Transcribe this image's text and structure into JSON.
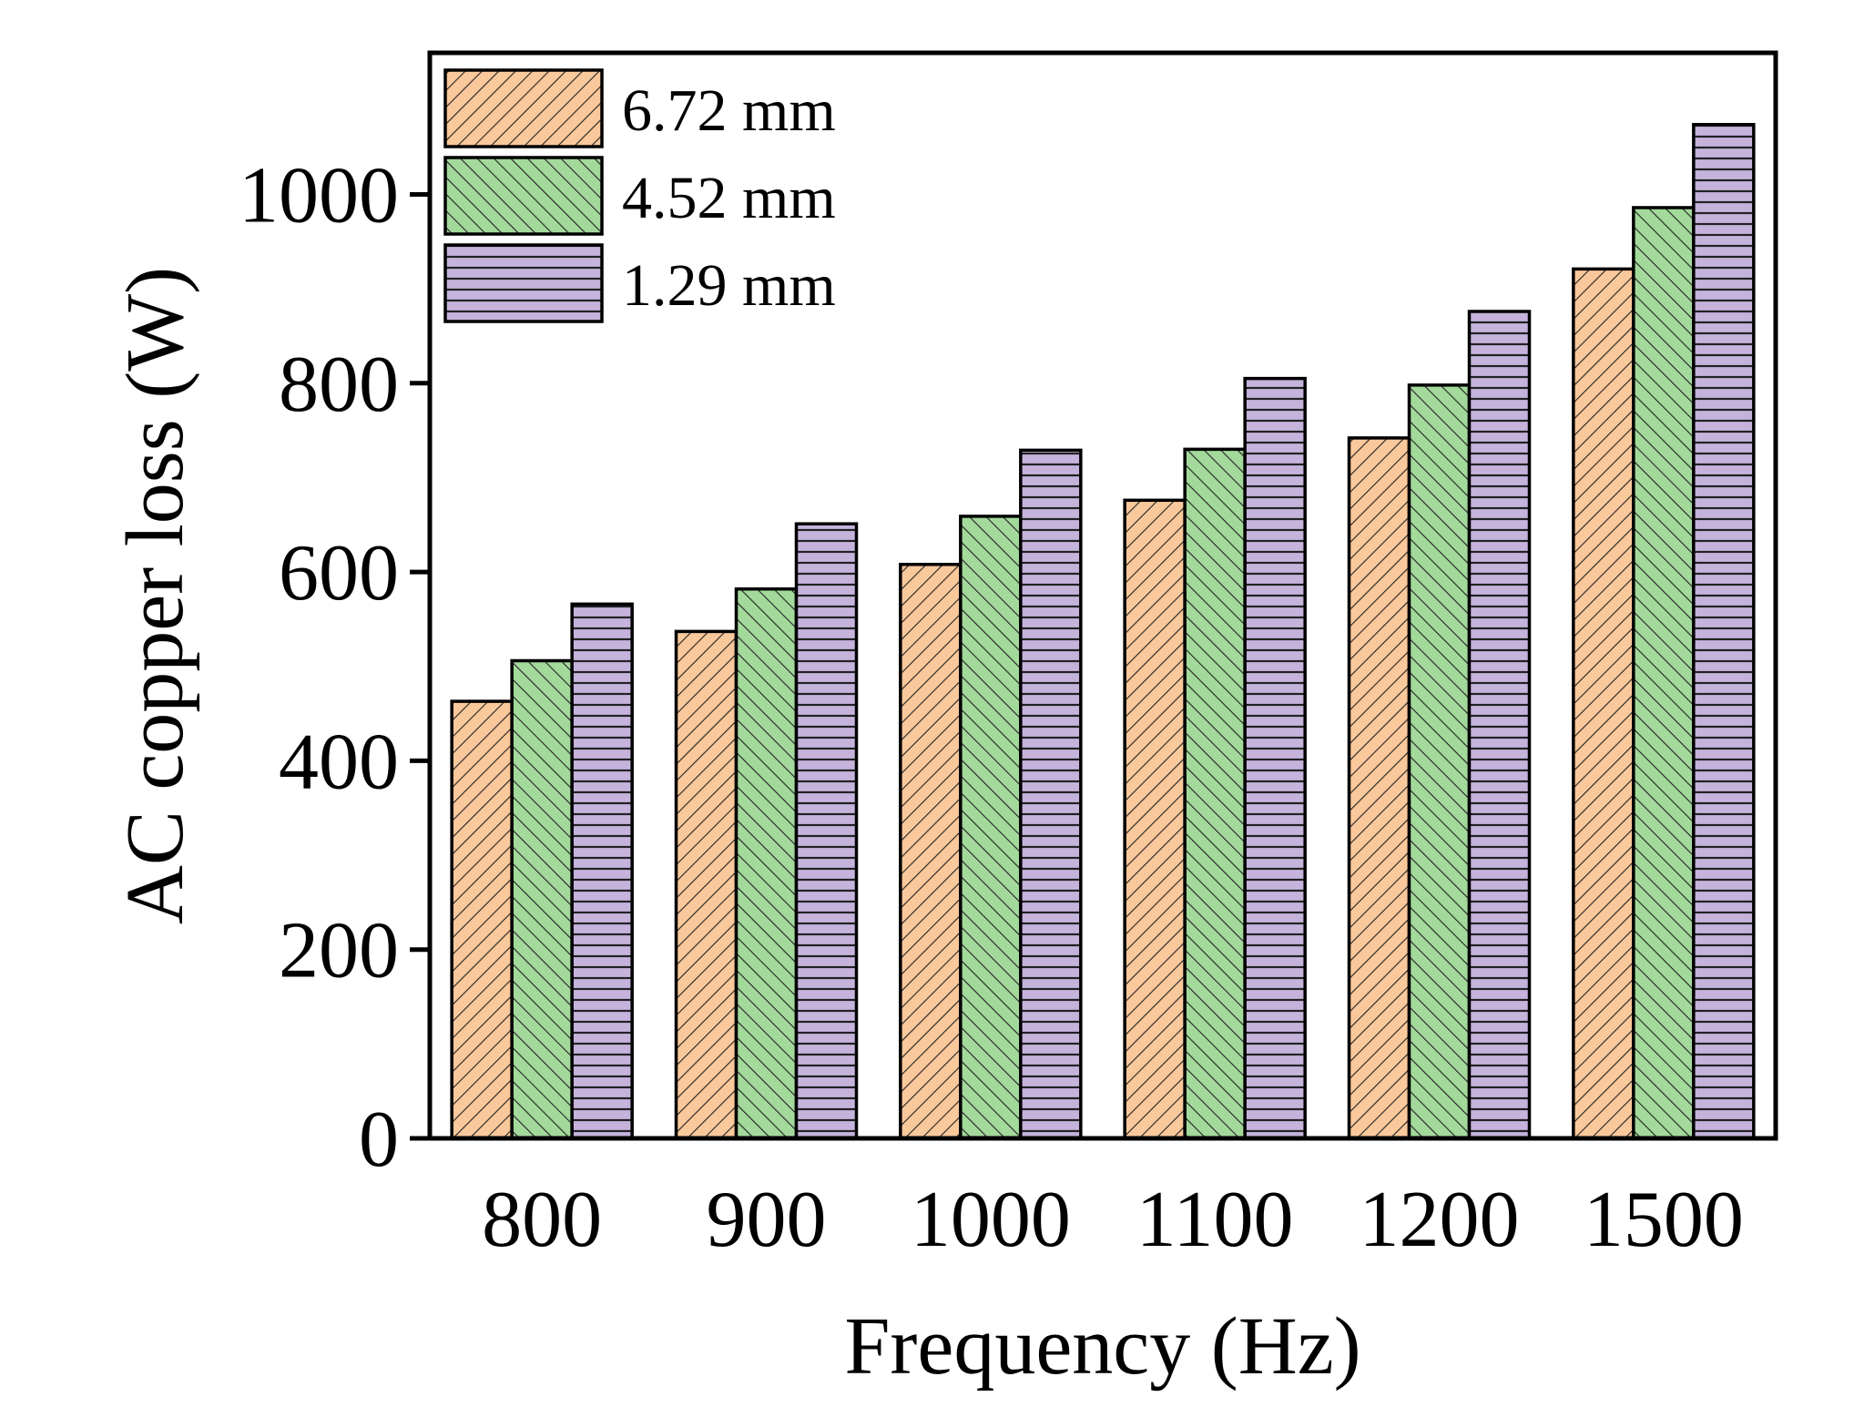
{
  "chart_data": {
    "type": "bar",
    "title": "",
    "xlabel": "Frequency (Hz)",
    "ylabel": "AC copper loss (W)",
    "categories": [
      "800",
      "900",
      "1000",
      "1100",
      "1200",
      "1500"
    ],
    "ylim": [
      0,
      1150
    ],
    "yticks": [
      "0",
      "200",
      "400",
      "600",
      "800",
      "1000"
    ],
    "legend_position": "top-left",
    "grid": false,
    "series": [
      {
        "name": "6.72 mm",
        "color": "#f9c89b",
        "hatch": "forward-diagonal",
        "values": [
          463,
          537,
          608,
          676,
          742,
          921
        ]
      },
      {
        "name": "4.52 mm",
        "color": "#a3d99b",
        "hatch": "back-diagonal",
        "values": [
          506,
          582,
          659,
          730,
          798,
          986
        ]
      },
      {
        "name": "1.29 mm",
        "color": "#c5b3dc",
        "hatch": "horizontal",
        "values": [
          566,
          651,
          729,
          805,
          876,
          1074
        ]
      }
    ]
  }
}
